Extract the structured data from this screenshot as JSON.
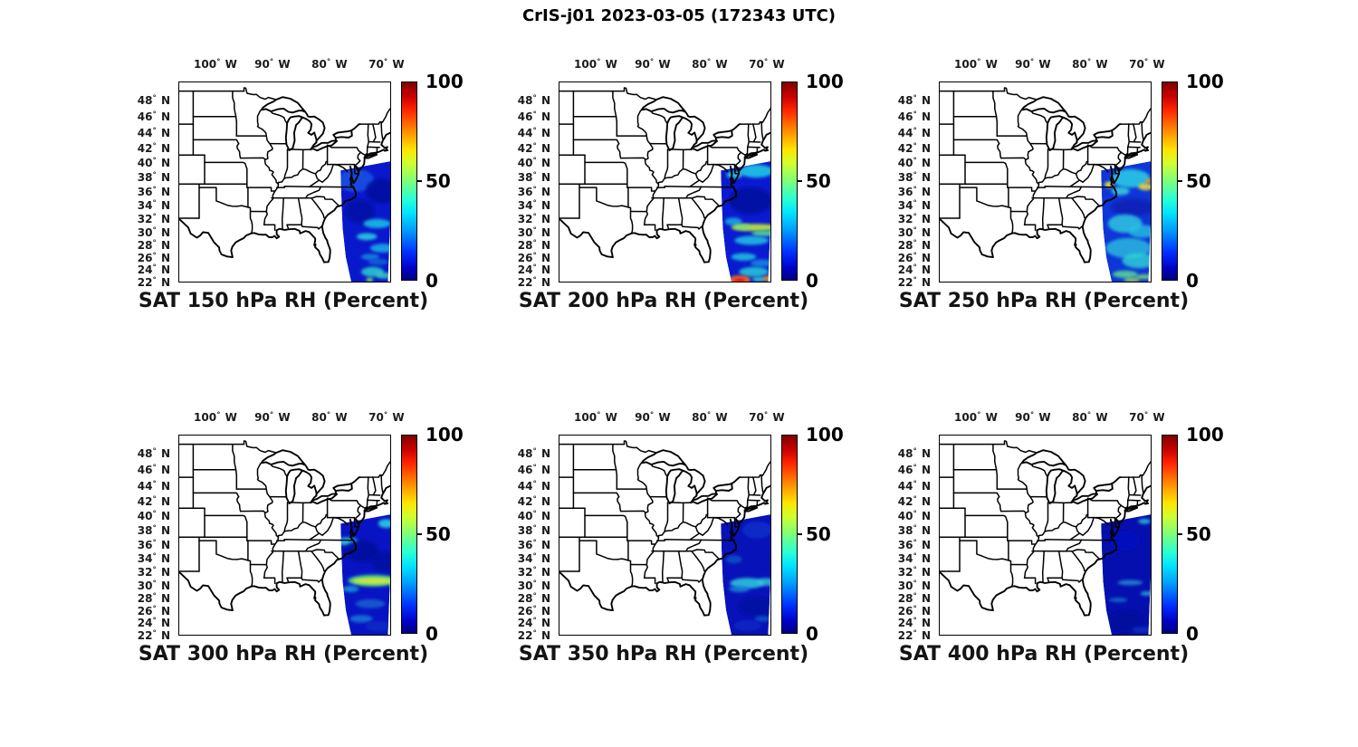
{
  "figure_title": "CrIS-j01 2023-03-05 (172343 UTC)",
  "chart_data": {
    "type": "heatmap",
    "title": "CrIS-j01 2023-03-05 (172343 UTC)",
    "instrument": "CrIS-j01",
    "date": "2023-03-05",
    "time_utc": "172343",
    "variable": "RH (Percent)",
    "layout": "2 rows x 3 columns of identical geographic panels, each with its own jet colorbar",
    "projection": {
      "type": "mercator",
      "lon_west": 106.5,
      "lon_east": 69.5,
      "lat_south": 22,
      "lat_north": 50
    },
    "lon_ticks": [
      "100° W",
      "90° W",
      "80° W",
      "70° W"
    ],
    "lon_tick_values": [
      100,
      90,
      80,
      70
    ],
    "lat_ticks": [
      "48° N",
      "46° N",
      "44° N",
      "42° N",
      "40° N",
      "38° N",
      "36° N",
      "34° N",
      "32° N",
      "30° N",
      "28° N",
      "26° N",
      "24° N",
      "22° N"
    ],
    "lat_tick_values": [
      48,
      46,
      44,
      42,
      40,
      38,
      36,
      34,
      32,
      30,
      28,
      26,
      24,
      22
    ],
    "colorbar": {
      "min": 0,
      "max": 100,
      "ticks": [
        "100",
        "50",
        "0"
      ],
      "tick_values": [
        100,
        50,
        0
      ],
      "colormap": "jet",
      "units": "Percent"
    },
    "swath_outline": [
      [
        78.2,
        38.9
      ],
      [
        69.5,
        40.15
      ],
      [
        69.5,
        31.0
      ],
      [
        69.9,
        22.0
      ],
      [
        76.35,
        22.0
      ],
      [
        77.3,
        26.0
      ],
      [
        77.85,
        30.5
      ],
      [
        78.05,
        34.5
      ]
    ],
    "panels": [
      {
        "title": "SAT 150 hPa RH (Percent)",
        "pressure_hPa": 150,
        "swath": {
          "base_color": "#0a18cc",
          "features": [
            [
              75.5,
              37.5,
              3.2,
              1.6,
              "#1850e0",
              0.9
            ],
            [
              71.0,
              36.0,
              2.8,
              1.8,
              "#0010a0",
              0.9
            ],
            [
              74.8,
              33.0,
              2.6,
              1.8,
              "#000ca0",
              0.8
            ],
            [
              71.8,
              31.2,
              2.4,
              0.7,
              "#18c4e8",
              0.85
            ],
            [
              73.6,
              29.2,
              1.8,
              0.55,
              "#22cede",
              0.9
            ],
            [
              70.8,
              27.4,
              2.2,
              0.7,
              "#16bce8",
              0.8
            ],
            [
              73.0,
              26.0,
              1.6,
              0.5,
              "#1890dd",
              0.8
            ],
            [
              71.6,
              25.2,
              1.8,
              0.5,
              "#1478d8",
              0.7
            ],
            [
              72.6,
              23.6,
              2.0,
              0.8,
              "#28d2cf",
              0.85
            ],
            [
              70.6,
              23.0,
              1.4,
              0.5,
              "#3fdcc0",
              0.8
            ],
            [
              73.1,
              22.3,
              0.6,
              0.35,
              "#79e26a",
              0.95
            ]
          ]
        }
      },
      {
        "title": "SAT 200 hPa RH (Percent)",
        "pressure_hPa": 200,
        "swath": {
          "base_color": "#0a1ad0",
          "features": [
            [
              72.0,
              38.8,
              3.0,
              0.9,
              "#1cc8e6",
              0.9
            ],
            [
              75.8,
              38.3,
              1.4,
              0.5,
              "#28d2e2",
              0.9
            ],
            [
              73.0,
              34.6,
              3.8,
              2.0,
              "#000a9e",
              0.85
            ],
            [
              76.0,
              31.5,
              1.5,
              0.6,
              "#18b8e6",
              0.8
            ],
            [
              72.2,
              30.6,
              4.2,
              0.55,
              "#b9e23f",
              0.95
            ],
            [
              74.5,
              30.7,
              1.5,
              0.45,
              "#7ade6e",
              0.9
            ],
            [
              70.6,
              29.7,
              2.2,
              0.45,
              "#57dc92",
              0.9
            ],
            [
              72.8,
              28.6,
              3.0,
              0.7,
              "#1cc6e0",
              0.85
            ],
            [
              74.2,
              26.0,
              2.2,
              0.6,
              "#22cede",
              0.8
            ],
            [
              71.0,
              25.0,
              2.0,
              0.6,
              "#189ae0",
              0.75
            ],
            [
              72.4,
              23.6,
              2.6,
              0.8,
              "#26ccd6",
              0.85
            ],
            [
              71.5,
              22.4,
              1.2,
              0.4,
              "#39d8c8",
              0.85
            ],
            [
              74.9,
              22.3,
              1.9,
              0.7,
              "#f07b1e",
              0.95
            ],
            [
              74.9,
              22.15,
              1.1,
              0.45,
              "#e81207",
              1
            ],
            [
              69.9,
              22.5,
              1.0,
              0.45,
              "#ef8f1b",
              0.9
            ]
          ]
        }
      },
      {
        "title": "SAT 250 hPa RH (Percent)",
        "pressure_hPa": 250,
        "swath": {
          "base_color": "#0d35d8",
          "features": [
            [
              73.0,
              37.8,
              3.4,
              1.3,
              "#28c8e4",
              0.9
            ],
            [
              76.8,
              36.9,
              0.8,
              0.45,
              "#e3e23e",
              0.95
            ],
            [
              70.4,
              36.6,
              1.3,
              0.5,
              "#e8d83a",
              0.9
            ],
            [
              69.9,
              37.4,
              0.55,
              0.3,
              "#f29426",
              0.95
            ],
            [
              74.8,
              36.0,
              1.6,
              0.6,
              "#35d2d8",
              0.85
            ],
            [
              72.6,
              33.6,
              3.8,
              1.3,
              "#0d1db4",
              0.85
            ],
            [
              74.0,
              31.2,
              3.0,
              1.4,
              "#2fd0de",
              0.8
            ],
            [
              71.0,
              30.0,
              2.4,
              1.0,
              "#28c0e0",
              0.8
            ],
            [
              73.4,
              27.4,
              4.0,
              1.6,
              "#2bcade",
              0.75
            ],
            [
              71.5,
              25.4,
              3.0,
              1.2,
              "#30d4d4",
              0.8
            ],
            [
              74.0,
              23.2,
              2.2,
              0.6,
              "#57dc92",
              0.85
            ],
            [
              70.6,
              22.8,
              1.6,
              0.4,
              "#7ade6e",
              0.85
            ],
            [
              72.8,
              22.3,
              1.4,
              0.4,
              "#9ae25a",
              0.8
            ]
          ]
        }
      },
      {
        "title": "SAT 300 hPa RH (Percent)",
        "pressure_hPa": 300,
        "swath": {
          "base_color": "#0814c4",
          "features": [
            [
              70.2,
              38.9,
              1.4,
              0.6,
              "#28cede",
              0.9
            ],
            [
              77.0,
              36.4,
              1.9,
              0.55,
              "#26cce2",
              0.9
            ],
            [
              74.5,
              35.0,
              3.0,
              1.6,
              "#000a9a",
              0.85
            ],
            [
              70.5,
              33.5,
              2.5,
              1.5,
              "#000c9e",
              0.8
            ],
            [
              72.5,
              30.6,
              4.4,
              0.9,
              "#4cd888",
              0.9
            ],
            [
              72.3,
              30.55,
              3.8,
              0.5,
              "#cdea38",
              0.95
            ],
            [
              76.4,
              29.3,
              1.4,
              0.5,
              "#1a9ede",
              0.8
            ],
            [
              73.0,
              27.0,
              2.6,
              0.7,
              "#1566d0",
              0.8
            ],
            [
              74.6,
              24.6,
              2.0,
              0.6,
              "#1a86d8",
              0.75
            ],
            [
              71.4,
              23.4,
              2.4,
              0.8,
              "#0f2cc0",
              0.8
            ]
          ]
        }
      },
      {
        "title": "SAT 350 hPa RH (Percent)",
        "pressure_hPa": 350,
        "swath": {
          "base_color": "#0712b8",
          "features": [
            [
              71.8,
              38.0,
              2.6,
              1.2,
              "#0d2cc8",
              0.9
            ],
            [
              75.9,
              33.8,
              1.4,
              0.6,
              "#1354cc",
              0.8
            ],
            [
              73.6,
              30.2,
              3.0,
              0.8,
              "#2ecede",
              0.85
            ],
            [
              70.3,
              30.4,
              1.6,
              0.6,
              "#34c8d8",
              0.8
            ],
            [
              75.0,
              29.3,
              1.8,
              0.5,
              "#1a8ad8",
              0.8
            ],
            [
              72.0,
              26.5,
              3.2,
              1.6,
              "#0009a0",
              0.8
            ],
            [
              70.9,
              24.6,
              1.4,
              0.5,
              "#1560ce",
              0.7
            ],
            [
              73.5,
              23.5,
              2.4,
              0.9,
              "#0d28c4",
              0.8
            ]
          ]
        }
      },
      {
        "title": "SAT 400 hPa RH (Percent)",
        "pressure_hPa": 400,
        "swath": {
          "base_color": "#050fae",
          "features": [
            [
              70.6,
              39.2,
              1.1,
              0.35,
              "#2cc4da",
              0.85
            ],
            [
              74.0,
              36.5,
              2.6,
              1.4,
              "#0712bc",
              0.9
            ],
            [
              73.1,
              30.3,
              2.2,
              0.4,
              "#2694d4",
              0.8
            ],
            [
              70.2,
              28.6,
              1.1,
              0.35,
              "#30b4d8",
              0.8
            ],
            [
              75.2,
              27.6,
              1.6,
              0.35,
              "#1a78cc",
              0.75
            ],
            [
              73.9,
              24.2,
              3.0,
              1.8,
              "#04089a",
              0.85
            ],
            [
              71.2,
              22.8,
              1.6,
              0.5,
              "#0d30c0",
              0.8
            ]
          ]
        }
      }
    ]
  }
}
